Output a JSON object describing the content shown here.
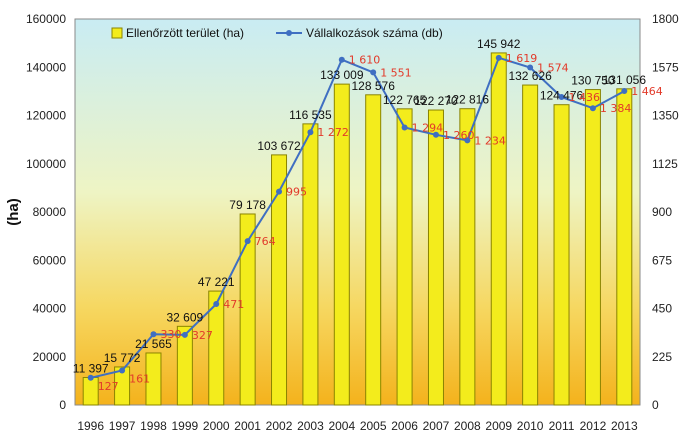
{
  "chart_data": {
    "type": "bar",
    "categories": [
      "1996",
      "1997",
      "1998",
      "1999",
      "2000",
      "2001",
      "2002",
      "2003",
      "2004",
      "2005",
      "2006",
      "2007",
      "2008",
      "2009",
      "2010",
      "2011",
      "2012",
      "2013"
    ],
    "series": [
      {
        "name": "Ellenőrzött terület (ha)",
        "type": "bar",
        "axis": "left",
        "values": [
          11397,
          15772,
          21565,
          32609,
          47221,
          79178,
          103672,
          116535,
          133009,
          128576,
          122765,
          122270,
          122816,
          145942,
          132626,
          124476,
          130750,
          131056
        ],
        "labels": [
          "11 397",
          "15 772",
          "21 565",
          "32 609",
          "47 221",
          "79 178",
          "103 672",
          "116 535",
          "133 009",
          "128 576",
          "122 765",
          "122 270",
          "122 816",
          "145 942",
          "132 626",
          "124 476",
          "130 750",
          "131 056"
        ]
      },
      {
        "name": "Vállalkozások száma (db)",
        "type": "line",
        "axis": "right",
        "values": [
          127,
          161,
          330,
          327,
          471,
          764,
          995,
          1272,
          1610,
          1551,
          1294,
          1260,
          1234,
          1619,
          1574,
          1436,
          1384,
          1464
        ],
        "labels": [
          "127",
          "161",
          "330",
          "327",
          "471",
          "764",
          "995",
          "1 272",
          "1 610",
          "1 551",
          "1 294",
          "1 260",
          "1 234",
          "1 619",
          "1 574",
          "1 436",
          "1 384",
          "1 464"
        ]
      }
    ],
    "ylabel": "(ha)",
    "ylim": [
      0,
      160000
    ],
    "y_ticks": [
      "0",
      "20000",
      "40000",
      "60000",
      "80000",
      "100000",
      "120000",
      "140000",
      "160000"
    ],
    "y2lim": [
      0,
      1800
    ],
    "y2_ticks": [
      "0",
      "225",
      "450",
      "675",
      "900",
      "1125",
      "1350",
      "1575",
      "1800"
    ],
    "legend_position": "top-center",
    "grid": false,
    "colors": {
      "bar_fill": "#f3ec1c",
      "bar_stroke": "#8a8400",
      "line": "#3f6fc2",
      "line_label": "#e23a2a",
      "bg_top": "#c9ecf3",
      "bg_mid": "#eef4c4",
      "bg_bottom": "#f4b21c"
    }
  }
}
